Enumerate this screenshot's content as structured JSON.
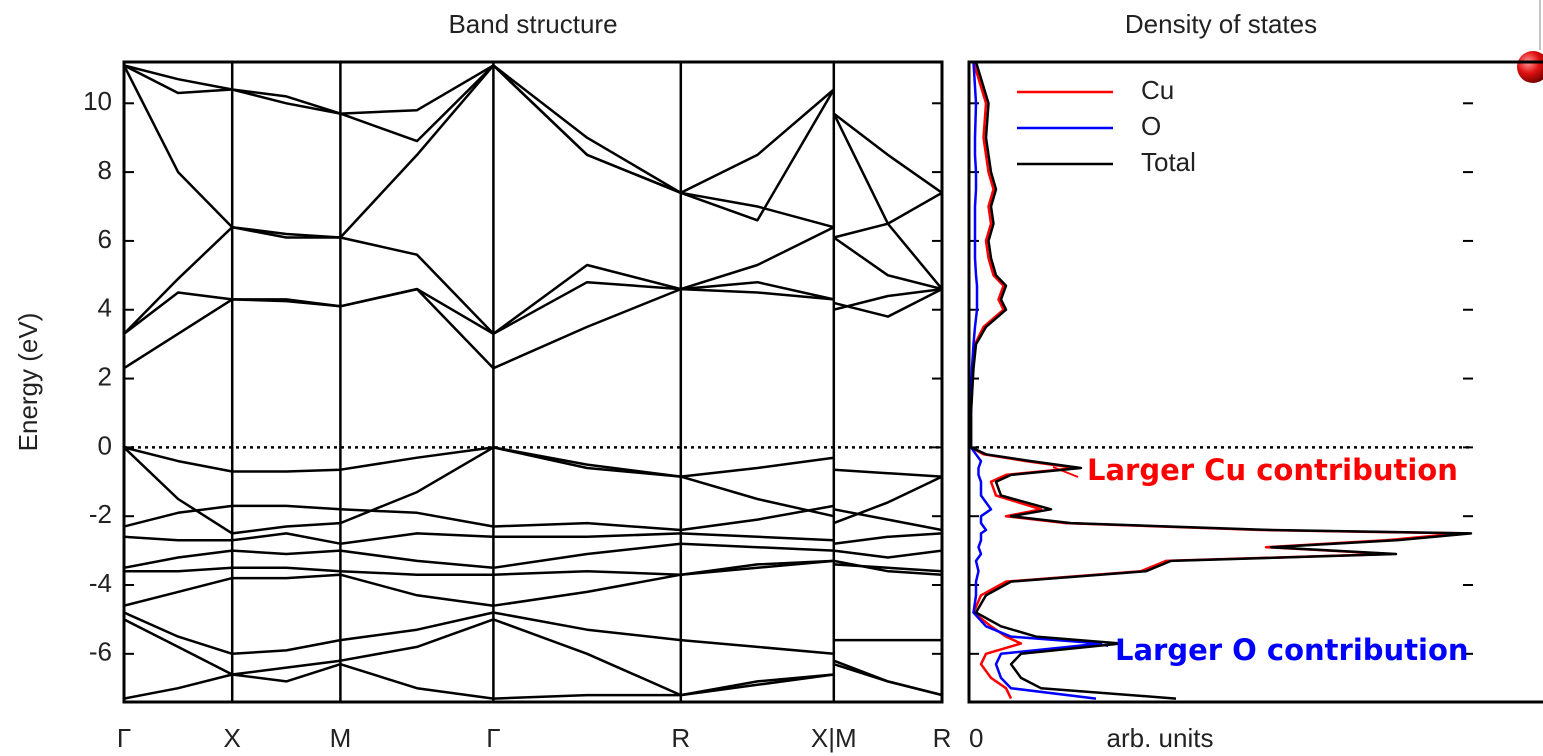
{
  "chart_data": [
    {
      "type": "line",
      "title": "Band structure",
      "ylabel": "Energy (eV)",
      "x": [
        0,
        0.25,
        0.5,
        0.75,
        1,
        1.354,
        1.707,
        2.14,
        2.573,
        2.927,
        3.28,
        3.28,
        3.28,
        3.53,
        3.78
      ],
      "xlim": [
        0,
        3.78
      ],
      "xticks": [
        {
          "value": 0,
          "label": "Γ"
        },
        {
          "value": 0.5,
          "label": "X"
        },
        {
          "value": 1,
          "label": "M"
        },
        {
          "value": 1.707,
          "label": "Γ"
        },
        {
          "value": 2.573,
          "label": "R"
        },
        {
          "value": 3.28,
          "label": "X|M"
        },
        {
          "value": 3.78,
          "label": "R"
        }
      ],
      "xgrid": true,
      "ylim": [
        -7.4,
        11.2
      ],
      "yticks": [
        -6,
        -4,
        -2,
        0,
        2,
        4,
        6,
        8,
        10
      ],
      "hline": 0,
      "series": [
        {
          "color": "#000000",
          "values": [
            2.3,
            3.3,
            4.3,
            4.25,
            4.1,
            4.6,
            2.3,
            3.5,
            4.6,
            4.5,
            4.3,
            null,
            4.2,
            3.8,
            4.6
          ]
        },
        {
          "color": "#000000",
          "values": [
            3.3,
            4.9,
            6.4,
            6.2,
            6.1,
            5.6,
            3.3,
            5.3,
            4.6,
            5.3,
            6.4,
            null,
            6.1,
            5.0,
            4.6
          ]
        },
        {
          "color": "#000000",
          "values": [
            3.3,
            4.5,
            4.3,
            4.3,
            4.1,
            4.6,
            3.3,
            4.8,
            4.6,
            4.8,
            4.3,
            null,
            4.0,
            4.4,
            4.6
          ]
        },
        {
          "color": "#000000",
          "values": [
            11.1,
            8.0,
            6.4,
            6.1,
            6.1,
            8.5,
            11.1,
            8.5,
            7.4,
            7.0,
            6.4,
            null,
            6.1,
            6.5,
            7.4
          ]
        },
        {
          "color": "#000000",
          "values": [
            11.1,
            10.3,
            10.4,
            10.0,
            9.7,
            9.8,
            11.1,
            9.0,
            7.4,
            6.6,
            10.4,
            null,
            9.7,
            6.5,
            4.6
          ]
        },
        {
          "color": "#000000",
          "values": [
            11.1,
            10.7,
            10.4,
            10.2,
            9.7,
            8.9,
            11.1,
            8.5,
            7.4,
            8.5,
            10.4,
            null,
            9.7,
            8.5,
            7.4
          ]
        },
        {
          "color": "#000000",
          "values": [
            0,
            -0.4,
            -0.7,
            -0.7,
            -0.65,
            -0.3,
            0,
            -0.6,
            -0.85,
            -0.6,
            -0.3,
            null,
            -0.65,
            -0.75,
            -0.85
          ]
        },
        {
          "color": "#000000",
          "values": [
            0,
            -1.5,
            -2.5,
            -2.3,
            -2.2,
            -1.3,
            0,
            -0.5,
            -0.85,
            -1.5,
            -2.0,
            null,
            -2.2,
            -1.6,
            -0.85
          ]
        },
        {
          "color": "#000000",
          "values": [
            -2.3,
            -1.9,
            -1.7,
            -1.7,
            -1.8,
            -1.9,
            -2.3,
            -2.2,
            -2.4,
            -2.1,
            -1.7,
            null,
            -1.8,
            -2.1,
            -2.4
          ]
        },
        {
          "color": "#000000",
          "values": [
            -2.6,
            -2.7,
            -2.7,
            -2.5,
            -2.8,
            -2.5,
            -2.6,
            -2.6,
            -2.5,
            -2.6,
            -2.7,
            null,
            -2.8,
            -2.6,
            -2.5
          ]
        },
        {
          "color": "#000000",
          "values": [
            -3.5,
            -3.2,
            -3.0,
            -3.1,
            -3.0,
            -3.3,
            -3.5,
            -3.1,
            -2.8,
            -2.9,
            -3.0,
            null,
            -3.0,
            -3.2,
            -3.0
          ]
        },
        {
          "color": "#000000",
          "values": [
            -3.6,
            -3.6,
            -3.5,
            -3.5,
            -3.6,
            -3.7,
            -3.7,
            -3.6,
            -3.7,
            -3.4,
            -3.3,
            null,
            -3.4,
            -3.5,
            -3.6
          ]
        },
        {
          "color": "#000000",
          "values": [
            -4.6,
            -4.2,
            -3.8,
            -3.8,
            -3.7,
            -4.3,
            -4.6,
            -4.2,
            -3.7,
            -3.5,
            -3.3,
            null,
            -3.3,
            -3.6,
            -3.7
          ]
        },
        {
          "color": "#000000",
          "values": [
            -4.8,
            -5.5,
            -6.0,
            -5.9,
            -5.6,
            -5.3,
            -4.8,
            -5.3,
            -5.6,
            -5.8,
            -6.0,
            null,
            -5.6,
            -5.6,
            -5.6
          ]
        },
        {
          "color": "#000000",
          "values": [
            -5.0,
            -5.8,
            -6.6,
            -6.4,
            -6.2,
            -5.8,
            -5.0,
            -6.0,
            -7.2,
            -6.9,
            -6.6,
            null,
            -6.2,
            -6.8,
            -7.2
          ]
        },
        {
          "color": "#000000",
          "values": [
            -7.3,
            -7.0,
            -6.6,
            -6.8,
            -6.3,
            -7.0,
            -7.3,
            -7.2,
            -7.2,
            -6.8,
            -6.6,
            null,
            -6.3,
            -6.8,
            -7.2
          ]
        }
      ]
    },
    {
      "type": "line",
      "orientation": "horizontal",
      "title": "Density of states",
      "xlabel": "arb. units",
      "y": [
        11.2,
        10,
        9,
        8.5,
        8,
        7.5,
        7,
        6.5,
        6,
        5.5,
        5,
        4.7,
        4.3,
        4.0,
        3.5,
        3,
        2.3,
        1,
        0,
        -0.2,
        -0.4,
        -0.6,
        -0.8,
        -1.0,
        -1.4,
        -1.8,
        -2.0,
        -2.2,
        -2.4,
        -2.5,
        -2.7,
        -2.9,
        -3.1,
        -3.3,
        -3.6,
        -3.9,
        -4.3,
        -4.8,
        -5.2,
        -5.5,
        -5.7,
        -6.0,
        -6.3,
        -6.7,
        -7.0,
        -7.3
      ],
      "xlim": [
        0,
        10
      ],
      "xticks": [
        0
      ],
      "ylim": [
        -7.4,
        11.2
      ],
      "yticks": [
        -6,
        -4,
        -2,
        0,
        2,
        4,
        6,
        8,
        10
      ],
      "hline": 0,
      "legend": "upper left",
      "series": [
        {
          "name": "Cu",
          "color": "#ff0000",
          "values": [
            0.05,
            0.3,
            0.25,
            0.3,
            0.35,
            0.45,
            0.35,
            0.4,
            0.3,
            0.35,
            0.45,
            0.65,
            0.55,
            0.65,
            0.25,
            0.08,
            0.03,
            0,
            0,
            0.25,
            1.1,
            2.1,
            0.7,
            0.4,
            0.5,
            1.4,
            0.7,
            1.9,
            5.8,
            9.8,
            8.3,
            5.9,
            8.4,
            3.9,
            3.4,
            0.7,
            0.2,
            0.05,
            0.4,
            0.7,
            1.0,
            0.3,
            0.2,
            0.4,
            0.7,
            0.8
          ]
        },
        {
          "name": "O",
          "color": "#0000ff",
          "values": [
            0.05,
            0.1,
            0.08,
            0.08,
            0.1,
            0.1,
            0.08,
            0.08,
            0.08,
            0.08,
            0.1,
            0.12,
            0.12,
            0.12,
            0.08,
            0.05,
            0.02,
            0,
            0,
            0.1,
            0.2,
            0.15,
            0.15,
            0.2,
            0.2,
            0.4,
            0.2,
            0.2,
            0.3,
            0.2,
            0.2,
            0.15,
            0.2,
            0.1,
            0.15,
            0.1,
            0.1,
            0.05,
            0.3,
            0.8,
            2.6,
            0.6,
            0.5,
            0.6,
            0.8,
            2.5
          ]
        },
        {
          "name": "Total",
          "color": "#000000",
          "values": [
            0.1,
            0.35,
            0.3,
            0.35,
            0.4,
            0.5,
            0.4,
            0.45,
            0.35,
            0.4,
            0.5,
            0.7,
            0.6,
            0.7,
            0.3,
            0.1,
            0.05,
            0,
            0,
            0.3,
            1.2,
            2.2,
            0.8,
            0.5,
            0.6,
            1.6,
            0.8,
            2.0,
            6.0,
            10,
            8.5,
            6.0,
            8.5,
            4.0,
            3.5,
            0.8,
            0.3,
            0.1,
            0.6,
            1.3,
            3.0,
            1.0,
            0.8,
            1.0,
            1.4,
            4.1
          ]
        }
      ],
      "annotations": [
        {
          "text": "Larger Cu contribution",
          "color": "#ff0000"
        },
        {
          "text": "Larger O contribution",
          "color": "#0000ff"
        }
      ]
    }
  ]
}
